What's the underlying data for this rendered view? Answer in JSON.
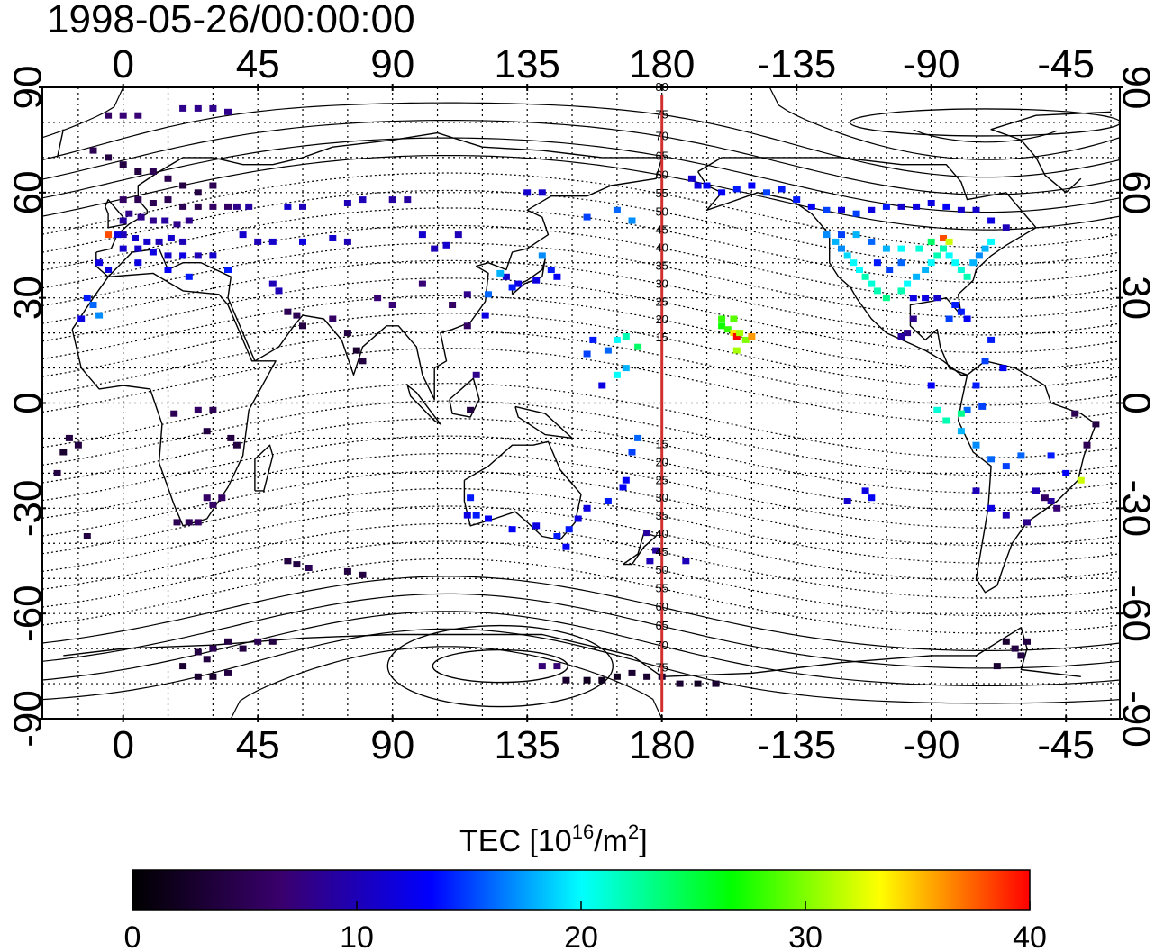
{
  "title": "1998-05-26/00:00:00",
  "map": {
    "lon_start": -27,
    "lon_end": 333,
    "lat_min": -90,
    "lat_max": 90,
    "top_ticks": [
      "0",
      "45",
      "90",
      "135",
      "180",
      "-135",
      "-90",
      "-45"
    ],
    "bottom_ticks": [
      "0",
      "45",
      "90",
      "135",
      "180",
      "-135",
      "-90",
      "-45"
    ],
    "tick_lons": [
      0,
      45,
      90,
      135,
      180,
      225,
      270,
      315
    ],
    "left_ticks": [
      "90",
      "60",
      "30",
      "0",
      "-30",
      "-60",
      "-90"
    ],
    "right_ticks": [
      "90",
      "60",
      "30",
      "0",
      "-30",
      "-60",
      "-90"
    ],
    "tick_lats": [
      90,
      60,
      30,
      0,
      -30,
      -60,
      -90
    ],
    "meridian_lon": 180,
    "meridian_color": "#d03030",
    "magnetic_lat_labels": [
      "80",
      "75",
      "70",
      "65",
      "60",
      "55",
      "50",
      "45",
      "40",
      "35",
      "30",
      "25",
      "20",
      "15",
      "15",
      "20",
      "25",
      "30",
      "35",
      "40",
      "45",
      "50",
      "55",
      "60",
      "65",
      "70",
      "75"
    ],
    "magnetic_lat_values": [
      80,
      75,
      70,
      65,
      60,
      55,
      50,
      45,
      40,
      35,
      30,
      25,
      20,
      15,
      -15,
      -20,
      -25,
      -30,
      -35,
      -40,
      -45,
      -50,
      -55,
      -60,
      -65,
      -70,
      -75
    ]
  },
  "colorbar": {
    "label_main": "TEC  [10",
    "label_sup1": "16",
    "label_mid": "/m",
    "label_sup2": "2",
    "label_end": "]",
    "ticks": [
      "0",
      "10",
      "20",
      "30",
      "40"
    ],
    "min": 0,
    "max": 40,
    "colormap": [
      "#000000",
      "#3a006e",
      "#0000ff",
      "#00ffff",
      "#00ff00",
      "#ffff00",
      "#ff0000"
    ]
  },
  "tec_data": {
    "units": "10^16/m^2",
    "points": [
      [
        -5,
        82,
        6
      ],
      [
        0,
        82,
        7
      ],
      [
        5,
        82,
        7
      ],
      [
        20,
        84,
        8
      ],
      [
        25,
        84,
        8
      ],
      [
        30,
        84,
        8
      ],
      [
        35,
        83,
        8
      ],
      [
        -10,
        72,
        5
      ],
      [
        -5,
        70,
        4
      ],
      [
        0,
        68,
        4
      ],
      [
        5,
        66,
        4
      ],
      [
        10,
        66,
        5
      ],
      [
        15,
        64,
        5
      ],
      [
        20,
        62,
        4
      ],
      [
        25,
        60,
        4
      ],
      [
        30,
        62,
        5
      ],
      [
        0,
        58,
        6
      ],
      [
        5,
        58,
        5
      ],
      [
        10,
        57,
        5
      ],
      [
        15,
        58,
        5
      ],
      [
        20,
        56,
        5
      ],
      [
        25,
        56,
        5
      ],
      [
        30,
        56,
        6
      ],
      [
        35,
        56,
        6
      ],
      [
        2,
        54,
        8
      ],
      [
        6,
        53,
        8
      ],
      [
        10,
        52,
        8
      ],
      [
        14,
        52,
        9
      ],
      [
        18,
        51,
        8
      ],
      [
        22,
        52,
        8
      ],
      [
        0,
        52,
        9
      ],
      [
        0,
        48,
        10
      ],
      [
        4,
        47,
        11
      ],
      [
        8,
        46,
        11
      ],
      [
        12,
        46,
        10
      ],
      [
        16,
        47,
        11
      ],
      [
        20,
        46,
        10
      ],
      [
        -5,
        48,
        38
      ],
      [
        -2,
        48,
        12
      ],
      [
        0,
        44,
        11
      ],
      [
        5,
        44,
        11
      ],
      [
        10,
        43,
        12
      ],
      [
        15,
        42,
        11
      ],
      [
        20,
        42,
        12
      ],
      [
        25,
        42,
        10
      ],
      [
        30,
        42,
        11
      ],
      [
        -8,
        40,
        12
      ],
      [
        -5,
        38,
        12
      ],
      [
        5,
        40,
        12
      ],
      [
        15,
        38,
        13
      ],
      [
        22,
        36,
        14
      ],
      [
        35,
        38,
        14
      ],
      [
        -12,
        30,
        14
      ],
      [
        -10,
        28,
        16
      ],
      [
        -8,
        25,
        17
      ],
      [
        -14,
        24,
        12
      ],
      [
        40,
        48,
        11
      ],
      [
        45,
        46,
        10
      ],
      [
        50,
        46,
        11
      ],
      [
        60,
        46,
        12
      ],
      [
        70,
        47,
        11
      ],
      [
        75,
        46,
        10
      ],
      [
        38,
        56,
        8
      ],
      [
        42,
        56,
        9
      ],
      [
        55,
        56,
        11
      ],
      [
        60,
        56,
        10
      ],
      [
        75,
        57,
        10
      ],
      [
        80,
        58,
        10
      ],
      [
        90,
        58,
        9
      ],
      [
        95,
        58,
        9
      ],
      [
        100,
        48,
        11
      ],
      [
        104,
        44,
        10
      ],
      [
        108,
        45,
        11
      ],
      [
        112,
        48,
        10
      ],
      [
        135,
        60,
        11
      ],
      [
        140,
        60,
        11
      ],
      [
        165,
        55,
        16
      ],
      [
        170,
        52,
        17
      ],
      [
        155,
        53,
        15
      ],
      [
        140,
        42,
        17
      ],
      [
        143,
        38,
        14
      ],
      [
        145,
        36,
        13
      ],
      [
        138,
        35,
        12
      ],
      [
        132,
        34,
        12
      ],
      [
        128,
        36,
        11
      ],
      [
        130,
        33,
        14
      ],
      [
        122,
        31,
        16
      ],
      [
        126,
        37,
        18
      ],
      [
        121,
        25,
        12
      ],
      [
        115,
        22,
        6
      ],
      [
        118,
        8,
        8
      ],
      [
        116,
        -2,
        4
      ],
      [
        50,
        34,
        10
      ],
      [
        52,
        32,
        10
      ],
      [
        55,
        26,
        5
      ],
      [
        58,
        25,
        5
      ],
      [
        60,
        22,
        4
      ],
      [
        70,
        24,
        6
      ],
      [
        75,
        20,
        4
      ],
      [
        78,
        15,
        3
      ],
      [
        80,
        12,
        4
      ],
      [
        85,
        30,
        7
      ],
      [
        90,
        28,
        7
      ],
      [
        100,
        34,
        7
      ],
      [
        110,
        28,
        6
      ],
      [
        115,
        31,
        8
      ],
      [
        17,
        -3,
        5
      ],
      [
        25,
        -2,
        6
      ],
      [
        28,
        -8,
        4
      ],
      [
        36,
        -10,
        4
      ],
      [
        38,
        -12,
        4
      ],
      [
        30,
        -2,
        5
      ],
      [
        -15,
        -12,
        4
      ],
      [
        -18,
        -10,
        4
      ],
      [
        -20,
        -14,
        3
      ],
      [
        -22,
        -20,
        4
      ],
      [
        18,
        -34,
        5
      ],
      [
        22,
        -34,
        5
      ],
      [
        25,
        -34,
        6
      ],
      [
        30,
        -29,
        6
      ],
      [
        28,
        -27,
        6
      ],
      [
        33,
        -27,
        6
      ],
      [
        -12,
        -38,
        4
      ],
      [
        55,
        -45,
        4
      ],
      [
        58,
        -46,
        4
      ],
      [
        62,
        -47,
        5
      ],
      [
        75,
        -48,
        4
      ],
      [
        80,
        -49,
        4
      ],
      [
        115,
        -32,
        12
      ],
      [
        118,
        -32,
        14
      ],
      [
        122,
        -33,
        13
      ],
      [
        116,
        -27,
        14
      ],
      [
        130,
        -36,
        13
      ],
      [
        138,
        -35,
        12
      ],
      [
        145,
        -38,
        14
      ],
      [
        149,
        -36,
        14
      ],
      [
        152,
        -33,
        12
      ],
      [
        155,
        -30,
        12
      ],
      [
        148,
        -41,
        13
      ],
      [
        162,
        -28,
        14
      ],
      [
        168,
        -22,
        13
      ],
      [
        167,
        -24,
        13
      ],
      [
        170,
        -14,
        15
      ],
      [
        172,
        -10,
        16
      ],
      [
        175,
        -37,
        9
      ],
      [
        178,
        -42,
        9
      ],
      [
        176,
        -45,
        10
      ],
      [
        -172,
        -45,
        10
      ],
      [
        160,
        5,
        12
      ],
      [
        162,
        15,
        16
      ],
      [
        165,
        18,
        20
      ],
      [
        168,
        19,
        22
      ],
      [
        172,
        16,
        24
      ],
      [
        165,
        8,
        20
      ],
      [
        168,
        10,
        18
      ],
      [
        155,
        14,
        15
      ],
      [
        157,
        18,
        14
      ],
      [
        -160,
        22,
        27
      ],
      [
        -158,
        21,
        28
      ],
      [
        -156,
        20,
        34
      ],
      [
        -155,
        19,
        40
      ],
      [
        -154,
        20,
        31
      ],
      [
        -152,
        18,
        30
      ],
      [
        -150,
        19,
        36
      ],
      [
        -155,
        15,
        31
      ],
      [
        -156,
        24,
        29
      ],
      [
        -160,
        24,
        28
      ],
      [
        -165,
        62,
        13
      ],
      [
        -160,
        60,
        13
      ],
      [
        -155,
        61,
        14
      ],
      [
        -150,
        62,
        13
      ],
      [
        -145,
        60,
        15
      ],
      [
        -140,
        61,
        14
      ],
      [
        -135,
        58,
        14
      ],
      [
        -130,
        56,
        13
      ],
      [
        -125,
        55,
        15
      ],
      [
        -120,
        55,
        12
      ],
      [
        -115,
        54,
        15
      ],
      [
        -110,
        55,
        12
      ],
      [
        -105,
        56,
        14
      ],
      [
        -100,
        56,
        11
      ],
      [
        -95,
        56,
        12
      ],
      [
        -90,
        57,
        12
      ],
      [
        -85,
        56,
        13
      ],
      [
        -80,
        55,
        11
      ],
      [
        -75,
        55,
        11
      ],
      [
        -70,
        52,
        12
      ],
      [
        -65,
        50,
        10
      ],
      [
        -170,
        64,
        11
      ],
      [
        -168,
        62,
        12
      ],
      [
        -125,
        48,
        17
      ],
      [
        -122,
        46,
        18
      ],
      [
        -120,
        44,
        17
      ],
      [
        -118,
        42,
        19
      ],
      [
        -116,
        40,
        20
      ],
      [
        -114,
        38,
        20
      ],
      [
        -112,
        36,
        22
      ],
      [
        -110,
        34,
        21
      ],
      [
        -108,
        32,
        22
      ],
      [
        -105,
        30,
        23
      ],
      [
        -100,
        32,
        22
      ],
      [
        -98,
        34,
        20
      ],
      [
        -95,
        36,
        18
      ],
      [
        -92,
        38,
        18
      ],
      [
        -90,
        40,
        20
      ],
      [
        -88,
        42,
        22
      ],
      [
        -86,
        44,
        22
      ],
      [
        -84,
        42,
        20
      ],
      [
        -82,
        40,
        20
      ],
      [
        -80,
        38,
        21
      ],
      [
        -78,
        36,
        22
      ],
      [
        -76,
        40,
        18
      ],
      [
        -74,
        42,
        17
      ],
      [
        -72,
        44,
        18
      ],
      [
        -70,
        46,
        20
      ],
      [
        -90,
        46,
        24
      ],
      [
        -86,
        47,
        38
      ],
      [
        -84,
        46,
        32
      ],
      [
        -94,
        44,
        21
      ],
      [
        -100,
        44,
        20
      ],
      [
        -105,
        44,
        18
      ],
      [
        -110,
        46,
        16
      ],
      [
        -115,
        48,
        18
      ],
      [
        -120,
        48,
        15
      ],
      [
        -100,
        40,
        16
      ],
      [
        -104,
        38,
        15
      ],
      [
        -108,
        40,
        14
      ],
      [
        -96,
        30,
        12
      ],
      [
        -92,
        30,
        12
      ],
      [
        -88,
        30,
        11
      ],
      [
        -82,
        28,
        14
      ],
      [
        -80,
        26,
        14
      ],
      [
        -78,
        24,
        13
      ],
      [
        -84,
        24,
        15
      ],
      [
        -96,
        24,
        8
      ],
      [
        -98,
        20,
        8
      ],
      [
        -100,
        19,
        9
      ],
      [
        -70,
        18,
        14
      ],
      [
        -72,
        12,
        15
      ],
      [
        -66,
        10,
        13
      ],
      [
        -75,
        5,
        14
      ],
      [
        -73,
        -1,
        15
      ],
      [
        -78,
        -2,
        16
      ],
      [
        -80,
        -8,
        18
      ],
      [
        -75,
        -12,
        17
      ],
      [
        -70,
        -16,
        16
      ],
      [
        -65,
        -18,
        15
      ],
      [
        -60,
        -15,
        16
      ],
      [
        -50,
        -15,
        14
      ],
      [
        -45,
        -20,
        13
      ],
      [
        -55,
        -25,
        10
      ],
      [
        -50,
        -28,
        9
      ],
      [
        -48,
        -30,
        7
      ],
      [
        -52,
        -27,
        6
      ],
      [
        -58,
        -34,
        8
      ],
      [
        -65,
        -32,
        10
      ],
      [
        -70,
        -30,
        12
      ],
      [
        -75,
        -25,
        10
      ],
      [
        -40,
        -22,
        32
      ],
      [
        -38,
        -12,
        5
      ],
      [
        -35,
        -6,
        4
      ],
      [
        -42,
        -3,
        5
      ],
      [
        -85,
        -5,
        22
      ],
      [
        -88,
        -2,
        21
      ],
      [
        -80,
        -3,
        23
      ],
      [
        -90,
        5,
        13
      ],
      [
        -110,
        -27,
        13
      ],
      [
        -112,
        -25,
        12
      ],
      [
        -118,
        -28,
        11
      ],
      [
        -60,
        -72,
        4
      ],
      [
        -62,
        -70,
        4
      ],
      [
        -65,
        -68,
        3
      ],
      [
        -58,
        -68,
        4
      ],
      [
        -68,
        -75,
        3
      ],
      [
        30,
        -70,
        5
      ],
      [
        35,
        -68,
        4
      ],
      [
        40,
        -70,
        4
      ],
      [
        45,
        -68,
        5
      ],
      [
        50,
        -68,
        4
      ],
      [
        25,
        -71,
        4
      ],
      [
        28,
        -73,
        4
      ],
      [
        20,
        -75,
        3
      ],
      [
        25,
        -78,
        3
      ],
      [
        30,
        -78,
        3
      ],
      [
        35,
        -77,
        4
      ],
      [
        140,
        -75,
        7
      ],
      [
        145,
        -75,
        7
      ],
      [
        148,
        -79,
        3
      ],
      [
        155,
        -79,
        2
      ],
      [
        160,
        -79,
        2
      ],
      [
        165,
        -78,
        2
      ],
      [
        170,
        -77,
        3
      ],
      [
        175,
        -78,
        3
      ],
      [
        180,
        -78,
        3
      ],
      [
        186,
        -80,
        3
      ],
      [
        192,
        -80,
        2
      ],
      [
        198,
        -80,
        3
      ]
    ]
  }
}
